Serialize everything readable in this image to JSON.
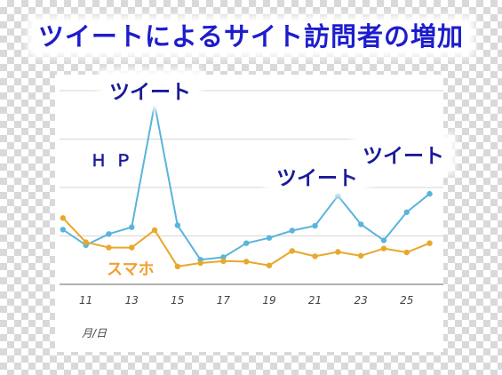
{
  "title": "ツイートによるサイト訪問者の増加",
  "annotations": {
    "tweet_1": "ツイート",
    "tweet_2": "ツイート",
    "tweet_3": "ツイート"
  },
  "colors": {
    "title": "#1d1dcc",
    "hp_series": "#5ab4dc",
    "sp_series": "#e8a82a",
    "hp_label": "#1a1a99",
    "sp_label": "#f0a030",
    "grid": "#d6d6d6",
    "axis": "#666666"
  },
  "chart_data": {
    "type": "line",
    "xlabel": "月/日",
    "ylabel": "",
    "x": [
      10,
      11,
      12,
      13,
      14,
      15,
      16,
      17,
      18,
      19,
      20,
      21,
      22,
      23,
      24,
      25,
      26
    ],
    "x_tick_labels": [
      "11",
      "13",
      "15",
      "17",
      "19",
      "21",
      "23",
      "25"
    ],
    "x_tick_values": [
      11,
      13,
      15,
      17,
      19,
      21,
      23,
      25
    ],
    "xlim": [
      9.85,
      26.6
    ],
    "ylim": [
      0,
      4
    ],
    "grid": true,
    "series": [
      {
        "name": "ＨＰ",
        "values": [
          1.13,
          0.81,
          1.04,
          1.18,
          3.72,
          1.22,
          0.51,
          0.56,
          0.85,
          0.96,
          1.11,
          1.21,
          1.83,
          1.24,
          0.91,
          1.49,
          1.87
        ]
      },
      {
        "name": "スマホ",
        "values": [
          1.37,
          0.87,
          0.76,
          0.76,
          1.12,
          0.37,
          0.44,
          0.48,
          0.47,
          0.39,
          0.69,
          0.58,
          0.67,
          0.59,
          0.74,
          0.66,
          0.85
        ]
      }
    ]
  }
}
